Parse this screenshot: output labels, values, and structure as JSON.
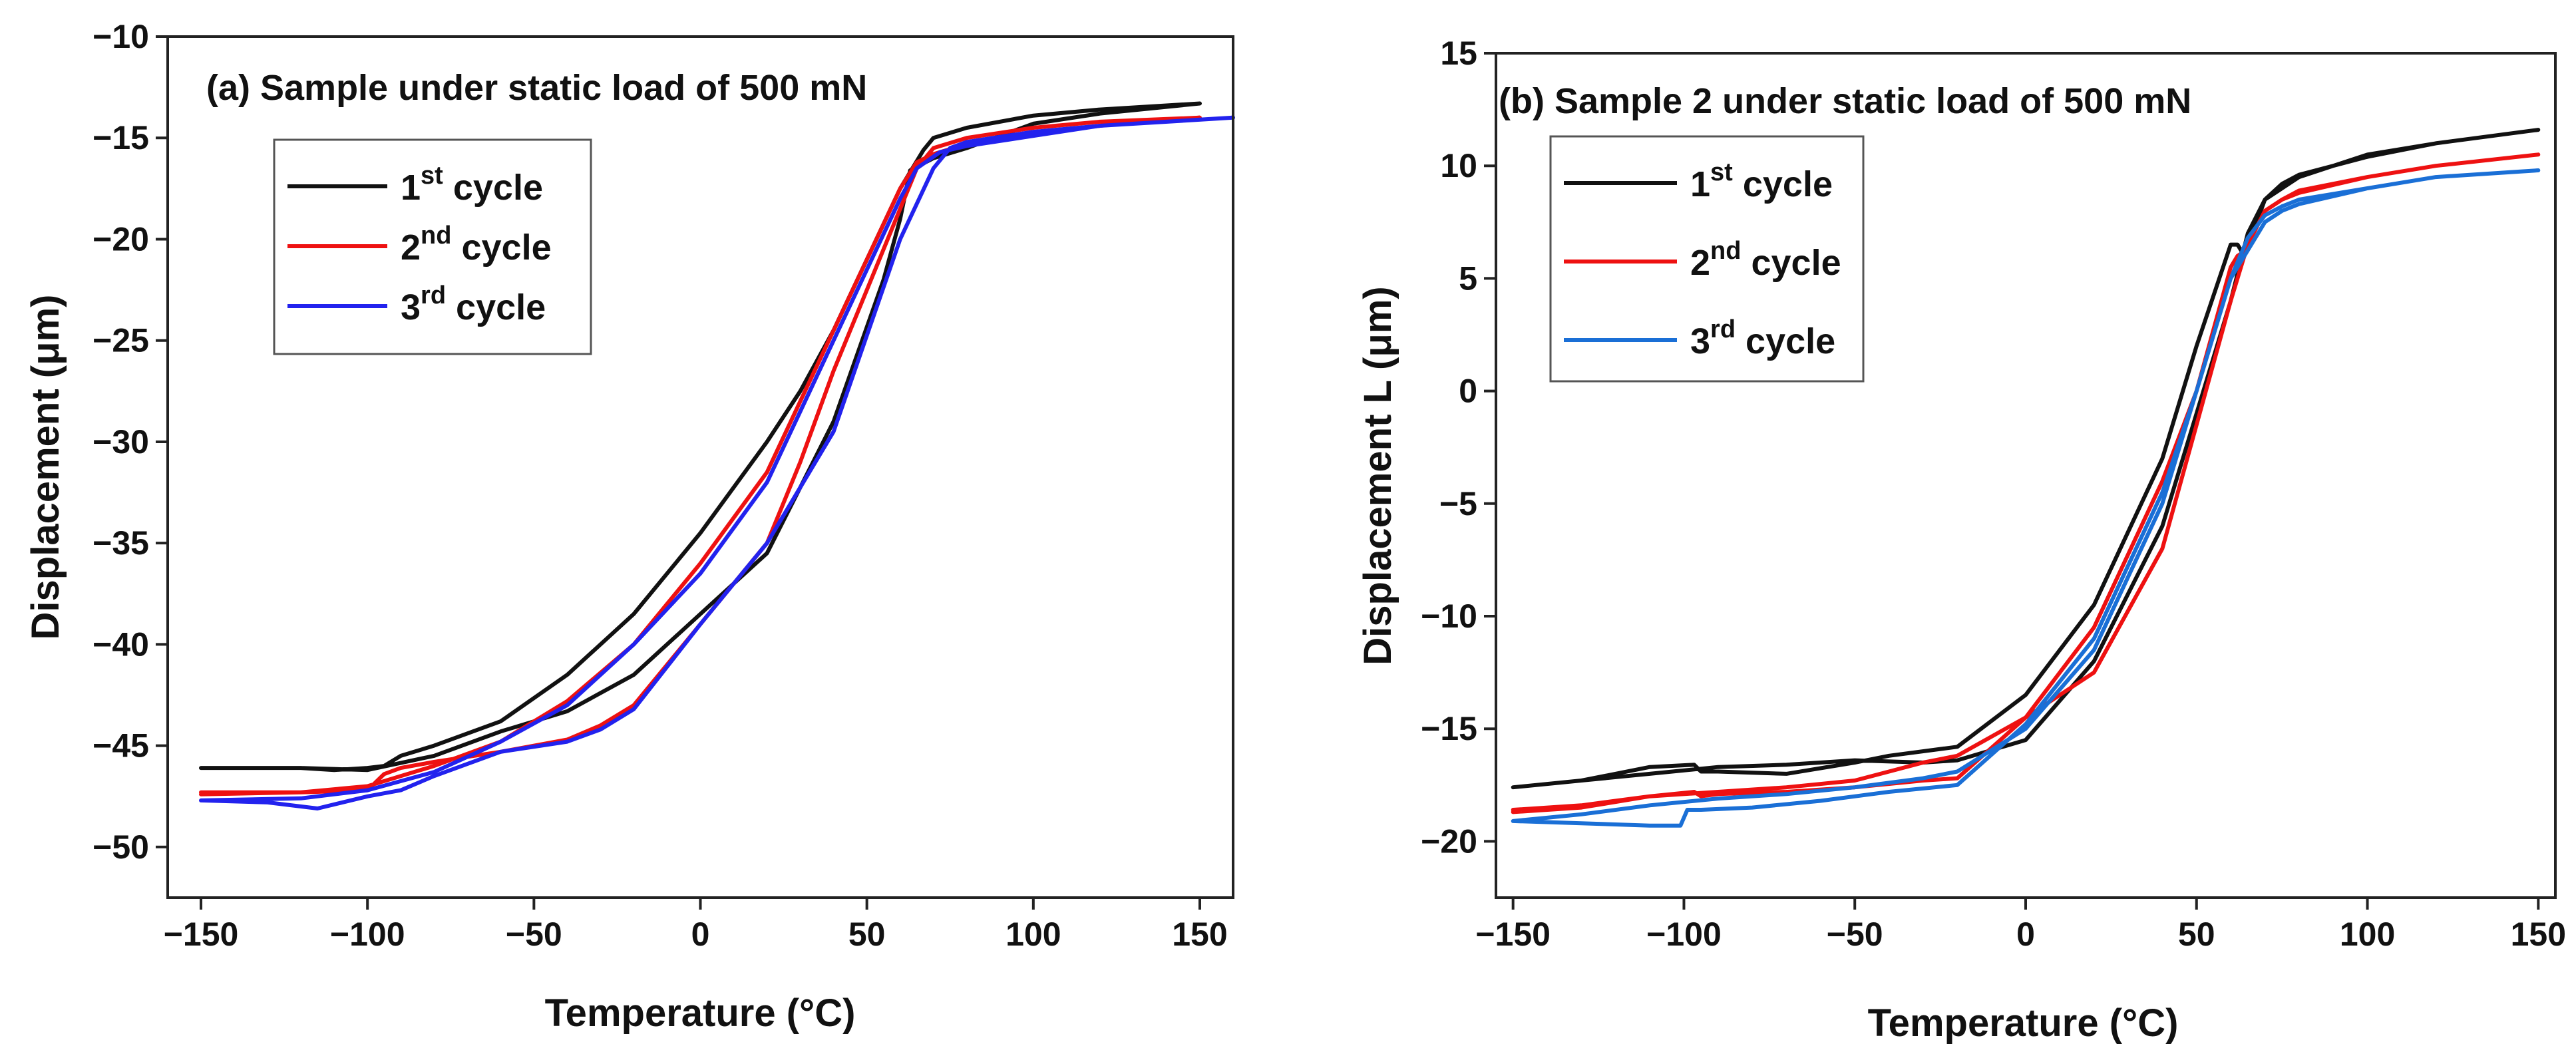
{
  "chart_data": [
    {
      "type": "line",
      "title": "(a) Sample under static load of 500 mN",
      "xlabel": "Temperature (°C)",
      "ylabel": "Displacement (μm)",
      "xlim": [
        -160,
        160
      ],
      "ylim": [
        -52.5,
        -10
      ],
      "xticks": [
        -150,
        -100,
        -50,
        0,
        50,
        100,
        150
      ],
      "yticks": [
        -10,
        -15,
        -20,
        -25,
        -30,
        -35,
        -40,
        -45,
        -50
      ],
      "legend": [
        {
          "base": "1",
          "sup": "st",
          "text": " cycle",
          "color": "#111111"
        },
        {
          "base": "2",
          "sup": "nd",
          "text": " cycle",
          "color": "#ee1111"
        },
        {
          "base": "3",
          "sup": "rd",
          "text": " cycle",
          "color": "#2222ee"
        }
      ],
      "series": [
        {
          "name": "1st cycle",
          "color": "#111111",
          "x": [
            -150,
            -120,
            -100,
            -80,
            -60,
            -40,
            -20,
            0,
            20,
            40,
            55,
            60,
            63,
            70,
            80,
            100,
            120,
            150,
            140,
            120,
            100,
            80,
            70,
            67,
            60,
            50,
            40,
            30,
            20,
            0,
            -20,
            -40,
            -60,
            -80,
            -90,
            -95,
            -100,
            -110,
            -120,
            -150
          ],
          "y": [
            -46.1,
            -46.1,
            -46.2,
            -45.5,
            -44.3,
            -43.3,
            -41.5,
            -38.5,
            -35.5,
            -29,
            -22,
            -19,
            -16.6,
            -16,
            -15.5,
            -14.3,
            -13.8,
            -13.3,
            -13.4,
            -13.6,
            -13.9,
            -14.5,
            -15,
            -15.6,
            -17.5,
            -21,
            -24.5,
            -27.5,
            -30,
            -34.5,
            -38.5,
            -41.5,
            -43.8,
            -45,
            -45.5,
            -46,
            -46.1,
            -46.2,
            -46.1,
            -46.1
          ]
        },
        {
          "name": "2nd cycle",
          "color": "#ee1111",
          "x": [
            -150,
            -120,
            -100,
            -95,
            -90,
            -80,
            -60,
            -40,
            -30,
            -20,
            0,
            10,
            20,
            30,
            40,
            50,
            60,
            65,
            70,
            80,
            100,
            120,
            150,
            140,
            120,
            100,
            80,
            70,
            65,
            60,
            50,
            40,
            30,
            20,
            0,
            -20,
            -40,
            -60,
            -80,
            -100,
            -120,
            -150
          ],
          "y": [
            -47.3,
            -47.3,
            -47.2,
            -46.4,
            -46.1,
            -45.8,
            -45.3,
            -44.7,
            -44,
            -43,
            -39,
            -37,
            -35,
            -31,
            -26.5,
            -22.5,
            -18.5,
            -16.5,
            -15.5,
            -15,
            -14.5,
            -14.2,
            -14,
            -14.1,
            -14.4,
            -14.8,
            -15.3,
            -15.8,
            -16.2,
            -17.5,
            -21,
            -24.5,
            -28,
            -31.5,
            -36,
            -40,
            -42.8,
            -44.8,
            -46,
            -47,
            -47.3,
            -47.4
          ]
        },
        {
          "name": "3rd cycle",
          "color": "#2222ee",
          "x": [
            -150,
            -130,
            -115,
            -100,
            -90,
            -80,
            -60,
            -40,
            -30,
            -20,
            0,
            20,
            40,
            60,
            70,
            75,
            80,
            100,
            120,
            160,
            150,
            120,
            100,
            80,
            72,
            65,
            60,
            50,
            40,
            30,
            20,
            0,
            -20,
            -40,
            -60,
            -80,
            -100,
            -120,
            -150
          ],
          "y": [
            -47.7,
            -47.8,
            -48.1,
            -47.5,
            -47.2,
            -46.5,
            -45.3,
            -44.8,
            -44.2,
            -43.2,
            -39,
            -35,
            -29.5,
            -20,
            -16.5,
            -15.5,
            -15.2,
            -14.7,
            -14.4,
            -14,
            -14.1,
            -14.4,
            -14.9,
            -15.4,
            -15.7,
            -16.5,
            -18,
            -21.5,
            -25,
            -28.5,
            -32,
            -36.5,
            -40,
            -43,
            -44.8,
            -46.3,
            -47.2,
            -47.6,
            -47.7
          ]
        }
      ]
    },
    {
      "type": "line",
      "title": "(b) Sample 2 under static load of  500 mN",
      "xlabel": "Temperature (°C)",
      "ylabel": "Displacement L (μm)",
      "xlim": [
        -155,
        155
      ],
      "ylim": [
        -22.5,
        15
      ],
      "xticks": [
        -150,
        -100,
        -50,
        0,
        50,
        100,
        150
      ],
      "yticks": [
        15,
        10,
        5,
        0,
        -5,
        -10,
        -15,
        -20
      ],
      "legend": [
        {
          "base": "1",
          "sup": "st",
          "text": " cycle",
          "color": "#111111"
        },
        {
          "base": "2",
          "sup": "nd",
          "text": " cycle",
          "color": "#ee1111"
        },
        {
          "base": "3",
          "sup": "rd",
          "text": " cycle",
          "color": "#1a6fd6"
        }
      ],
      "series": [
        {
          "name": "1st cycle",
          "color": "#111111",
          "x": [
            -150,
            -130,
            -110,
            -97,
            -95,
            -90,
            -70,
            -50,
            -40,
            -20,
            0,
            20,
            40,
            50,
            60,
            62,
            64,
            70,
            75,
            80,
            100,
            120,
            150,
            150,
            120,
            100,
            80,
            75,
            70,
            65,
            60,
            50,
            40,
            20,
            0,
            -20,
            -30,
            -50,
            -70,
            -90,
            -110,
            -130,
            -150
          ],
          "y": [
            -17.6,
            -17.3,
            -16.7,
            -16.6,
            -16.9,
            -16.9,
            -17,
            -16.5,
            -16.2,
            -15.8,
            -13.5,
            -9.5,
            -3,
            2,
            6.5,
            6.5,
            6,
            8.5,
            9,
            9.5,
            10.5,
            11,
            11.6,
            11.6,
            11,
            10.4,
            9.6,
            9.2,
            8.5,
            7,
            4,
            -1,
            -6,
            -12,
            -15.5,
            -16.4,
            -16.5,
            -16.4,
            -16.6,
            -16.7,
            -17,
            -17.3,
            -17.6
          ]
        },
        {
          "name": "2nd cycle",
          "color": "#ee1111",
          "x": [
            -150,
            -130,
            -110,
            -97,
            -95,
            -90,
            -70,
            -50,
            -30,
            -20,
            0,
            20,
            40,
            50,
            60,
            62,
            64,
            70,
            75,
            80,
            100,
            120,
            150,
            150,
            120,
            100,
            80,
            75,
            70,
            65,
            60,
            50,
            40,
            20,
            0,
            -20,
            -30,
            -50,
            -70,
            -90,
            -110,
            -130,
            -150
          ],
          "y": [
            -18.7,
            -18.5,
            -18,
            -17.8,
            -18,
            -17.9,
            -17.8,
            -17.6,
            -17.3,
            -17.2,
            -14.5,
            -10.5,
            -4,
            0,
            5.5,
            6,
            6.2,
            8,
            8.5,
            8.8,
            9.5,
            10,
            10.5,
            10.5,
            10,
            9.5,
            8.9,
            8.5,
            8,
            6.5,
            4,
            -1.5,
            -7,
            -12.5,
            -14.5,
            -16.2,
            -16.5,
            -17.3,
            -17.6,
            -17.8,
            -18,
            -18.4,
            -18.6
          ]
        },
        {
          "name": "3rd cycle",
          "color": "#1a6fd6",
          "x": [
            -150,
            -130,
            -110,
            -101,
            -99,
            -95,
            -80,
            -60,
            -40,
            -20,
            0,
            20,
            40,
            50,
            60,
            62,
            64,
            70,
            75,
            80,
            100,
            120,
            150,
            150,
            120,
            100,
            80,
            75,
            70,
            65,
            60,
            50,
            40,
            20,
            0,
            -20,
            -30,
            -50,
            -70,
            -90,
            -110,
            -130,
            -150
          ],
          "y": [
            -19.1,
            -19.2,
            -19.3,
            -19.3,
            -18.6,
            -18.6,
            -18.5,
            -18.2,
            -17.8,
            -17.5,
            -14.8,
            -11,
            -4.5,
            0,
            5,
            5.5,
            6,
            7.5,
            8,
            8.3,
            9,
            9.5,
            9.8,
            9.8,
            9.5,
            9,
            8.5,
            8.2,
            7.8,
            6.8,
            5,
            0,
            -5,
            -11.5,
            -15,
            -16.9,
            -17.2,
            -17.6,
            -17.9,
            -18.1,
            -18.4,
            -18.8,
            -19.1
          ]
        }
      ]
    }
  ]
}
